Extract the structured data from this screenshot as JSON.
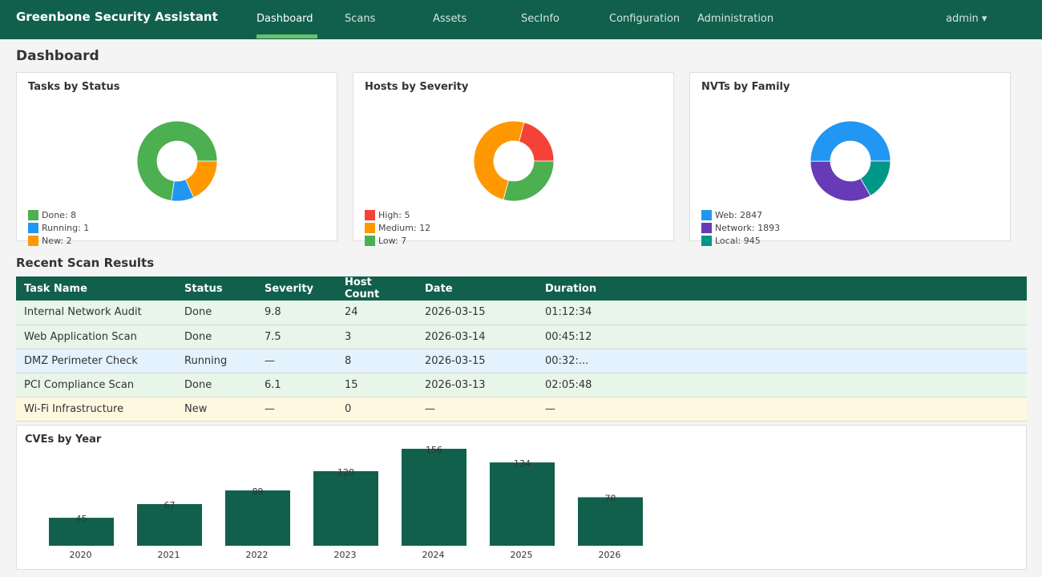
{
  "app": {
    "title": "Greenbone Security Assistant",
    "user_menu": "admin ▾"
  },
  "nav": {
    "items": [
      {
        "label": "Dashboard",
        "active": true
      },
      {
        "label": "Scans"
      },
      {
        "label": "Assets"
      },
      {
        "label": "SecInfo"
      },
      {
        "label": "Configuration"
      },
      {
        "label": "Administration"
      }
    ]
  },
  "page": {
    "title": "Dashboard"
  },
  "widgets": [
    {
      "title": "Tasks by Status",
      "legend": [
        {
          "label": "Done: 8",
          "value": 8,
          "color": "#4caf50"
        },
        {
          "label": "Running: 1",
          "value": 1,
          "color": "#2196f3"
        },
        {
          "label": "New: 2",
          "value": 2,
          "color": "#ff9800"
        }
      ]
    },
    {
      "title": "Hosts by Severity",
      "legend": [
        {
          "label": "High: 5",
          "value": 5,
          "color": "#f44336"
        },
        {
          "label": "Medium: 12",
          "value": 12,
          "color": "#ff9800"
        },
        {
          "label": "Low: 7",
          "value": 7,
          "color": "#4caf50"
        }
      ]
    },
    {
      "title": "NVTs by Family",
      "legend": [
        {
          "label": "Web: 2847",
          "value": 2847,
          "color": "#2196f3"
        },
        {
          "label": "Network: 1893",
          "value": 1893,
          "color": "#673ab7"
        },
        {
          "label": "Local: 945",
          "value": 945,
          "color": "#009688"
        }
      ]
    }
  ],
  "results": {
    "title": "Recent Scan Results",
    "columns": [
      "Task Name",
      "Status",
      "Severity",
      "Host Count",
      "Date",
      "Duration"
    ],
    "rows": [
      {
        "task": "Internal Network Audit",
        "status": "Done",
        "severity": "9.8",
        "hosts": "24",
        "date": "2026-03-15",
        "duration": "01:12:34"
      },
      {
        "task": "Web Application Scan",
        "status": "Done",
        "severity": "7.5",
        "hosts": "3",
        "date": "2026-03-14",
        "duration": "00:45:12"
      },
      {
        "task": "DMZ Perimeter Check",
        "status": "Running",
        "severity": "—",
        "hosts": "8",
        "date": "2026-03-15",
        "duration": "00:32:..."
      },
      {
        "task": "PCI Compliance Scan",
        "status": "Done",
        "severity": "6.1",
        "hosts": "15",
        "date": "2026-03-13",
        "duration": "02:05:48"
      },
      {
        "task": "Wi-Fi Infrastructure",
        "status": "New",
        "severity": "—",
        "hosts": "0",
        "date": "—",
        "duration": "—"
      }
    ]
  },
  "chart_data": {
    "type": "bar",
    "title": "CVEs by Year",
    "categories": [
      "2020",
      "2021",
      "2022",
      "2023",
      "2024",
      "2025",
      "2026"
    ],
    "values": [
      45,
      67,
      89,
      120,
      156,
      134,
      78
    ],
    "value_labels": [
      "45",
      "67",
      "89",
      "120",
      "156",
      "134",
      "78"
    ],
    "bar_color": "#11604c",
    "ylim": [
      0,
      156
    ]
  }
}
